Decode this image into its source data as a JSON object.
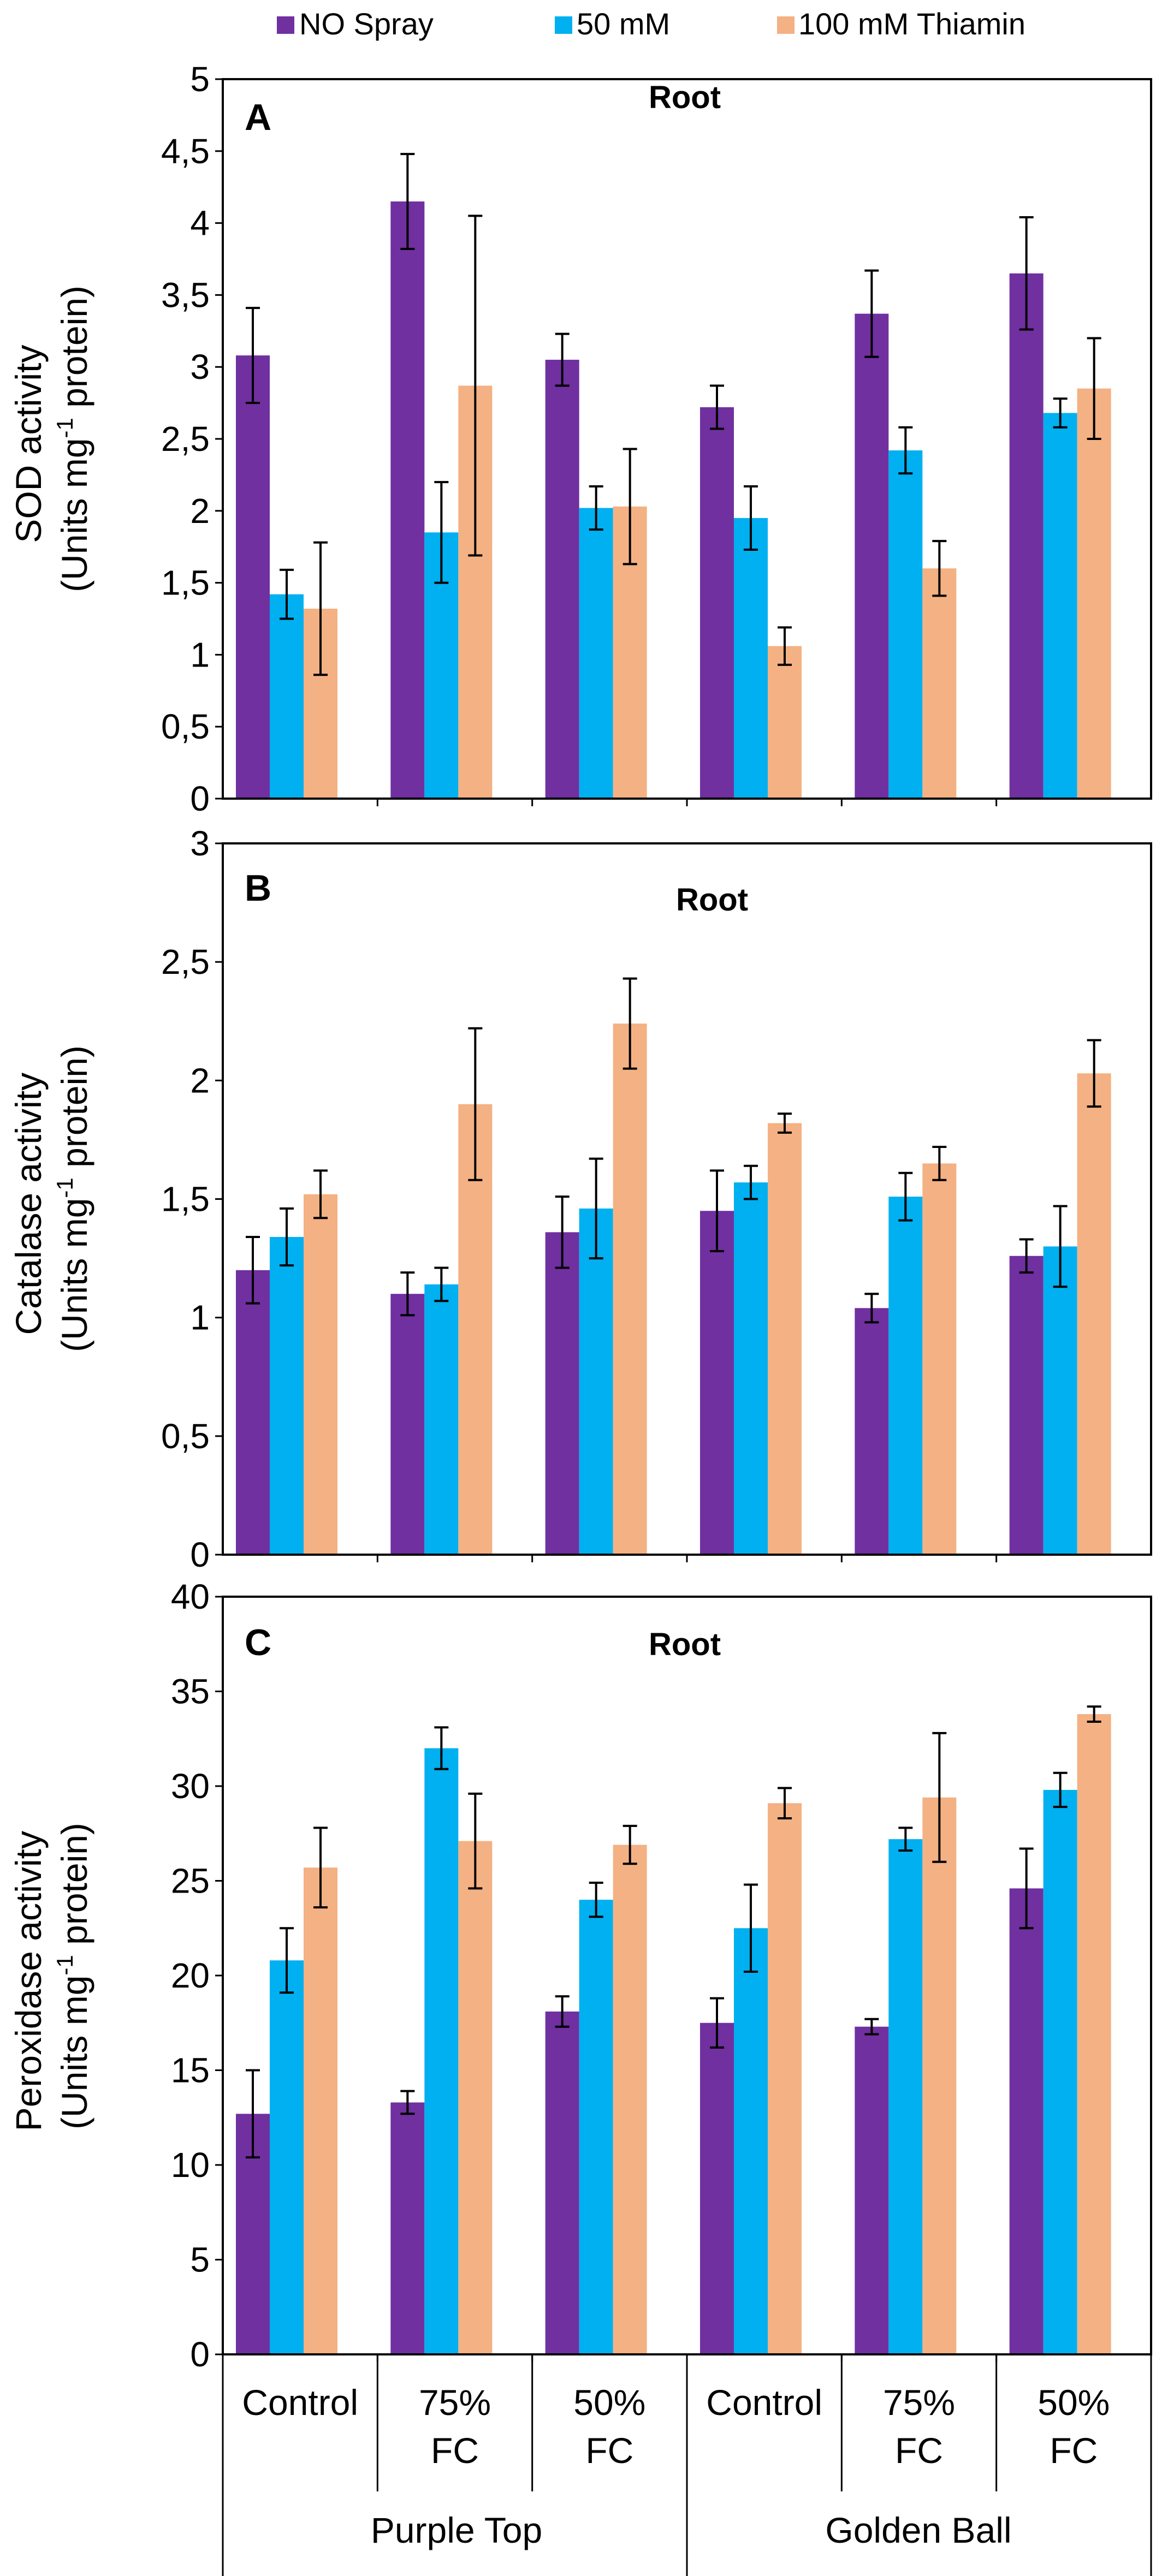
{
  "colors": {
    "no_spray": "#7030A0",
    "mm50": "#00B0F0",
    "mm100": "#F4B183",
    "axis": "#000000"
  },
  "legend": [
    {
      "label": "NO Spray",
      "color": "#7030A0"
    },
    {
      "label": "50 mM",
      "color": "#00B0F0"
    },
    {
      "label": "100 mM Thiamin",
      "color": "#F4B183"
    }
  ],
  "x_axis": {
    "categories": [
      {
        "line1": "Control",
        "line2": ""
      },
      {
        "line1": "75%",
        "line2": "FC"
      },
      {
        "line1": "50%",
        "line2": "FC"
      },
      {
        "line1": "Control",
        "line2": ""
      },
      {
        "line1": "75%",
        "line2": "FC"
      },
      {
        "line1": "50%",
        "line2": "FC"
      }
    ],
    "groups": [
      "Purple Top",
      "Golden Ball"
    ]
  },
  "chart_data": [
    {
      "type": "bar",
      "letter": "A",
      "title": "Root",
      "ylabel_line1": "SOD activity",
      "ylabel_line2_pre": "(Units mg",
      "ylabel_sup": "-1",
      "ylabel_line2_post": " protein)",
      "ylim": [
        0,
        5
      ],
      "yticks": [
        "0",
        "0,5",
        "1",
        "1,5",
        "2",
        "2,5",
        "3",
        "3,5",
        "4",
        "4,5",
        "5"
      ],
      "categories": [
        "Control",
        "75% FC",
        "50% FC",
        "Control",
        "75% FC",
        "50% FC"
      ],
      "series": [
        {
          "name": "NO Spray",
          "values": [
            3.08,
            4.15,
            3.05,
            2.72,
            3.37,
            3.65
          ],
          "errors": [
            0.33,
            0.33,
            0.18,
            0.15,
            0.3,
            0.39
          ]
        },
        {
          "name": "50 mM",
          "values": [
            1.42,
            1.85,
            2.02,
            1.95,
            2.42,
            2.68
          ],
          "errors": [
            0.17,
            0.35,
            0.15,
            0.22,
            0.16,
            0.1
          ]
        },
        {
          "name": "100 mM Thiamin",
          "values": [
            1.32,
            2.87,
            2.03,
            1.06,
            1.6,
            2.85
          ],
          "errors": [
            0.46,
            1.18,
            0.4,
            0.13,
            0.19,
            0.35
          ]
        }
      ]
    },
    {
      "type": "bar",
      "letter": "B",
      "title": "Root",
      "ylabel_line1": "Catalase activity",
      "ylabel_line2_pre": "(Units mg",
      "ylabel_sup": "-1",
      "ylabel_line2_post": " protein)",
      "ylim": [
        0,
        3
      ],
      "yticks": [
        "0",
        "0,5",
        "1",
        "1,5",
        "2",
        "2,5",
        "3"
      ],
      "categories": [
        "Control",
        "75% FC",
        "50% FC",
        "Control",
        "75% FC",
        "50% FC"
      ],
      "series": [
        {
          "name": "NO Spray",
          "values": [
            1.2,
            1.1,
            1.36,
            1.45,
            1.04,
            1.26
          ],
          "errors": [
            0.14,
            0.09,
            0.15,
            0.17,
            0.06,
            0.07
          ]
        },
        {
          "name": "50 mM",
          "values": [
            1.34,
            1.14,
            1.46,
            1.57,
            1.51,
            1.3
          ],
          "errors": [
            0.12,
            0.07,
            0.21,
            0.07,
            0.1,
            0.17
          ]
        },
        {
          "name": "100 mM Thiamin",
          "values": [
            1.52,
            1.9,
            2.24,
            1.82,
            1.65,
            2.03
          ],
          "errors": [
            0.1,
            0.32,
            0.19,
            0.04,
            0.07,
            0.14
          ]
        }
      ]
    },
    {
      "type": "bar",
      "letter": "C",
      "title": "Root",
      "ylabel_line1": "Peroxidase activity",
      "ylabel_line2_pre": "(Units mg",
      "ylabel_sup": "-1",
      "ylabel_line2_post": " protein)",
      "ylim": [
        0,
        40
      ],
      "yticks": [
        "0",
        "5",
        "10",
        "15",
        "20",
        "25",
        "30",
        "35",
        "40"
      ],
      "categories": [
        "Control",
        "75% FC",
        "50% FC",
        "Control",
        "75% FC",
        "50% FC"
      ],
      "series": [
        {
          "name": "NO Spray",
          "values": [
            12.7,
            13.3,
            18.1,
            17.5,
            17.3,
            24.6
          ],
          "errors": [
            2.3,
            0.6,
            0.8,
            1.3,
            0.4,
            2.1
          ]
        },
        {
          "name": "50 mM",
          "values": [
            20.8,
            32.0,
            24.0,
            22.5,
            27.2,
            29.8
          ],
          "errors": [
            1.7,
            1.1,
            0.9,
            2.3,
            0.6,
            0.9
          ]
        },
        {
          "name": "100 mM Thiamin",
          "values": [
            25.7,
            27.1,
            26.9,
            29.1,
            29.4,
            33.8
          ],
          "errors": [
            2.1,
            2.5,
            1.0,
            0.8,
            3.4,
            0.4
          ]
        }
      ]
    }
  ]
}
